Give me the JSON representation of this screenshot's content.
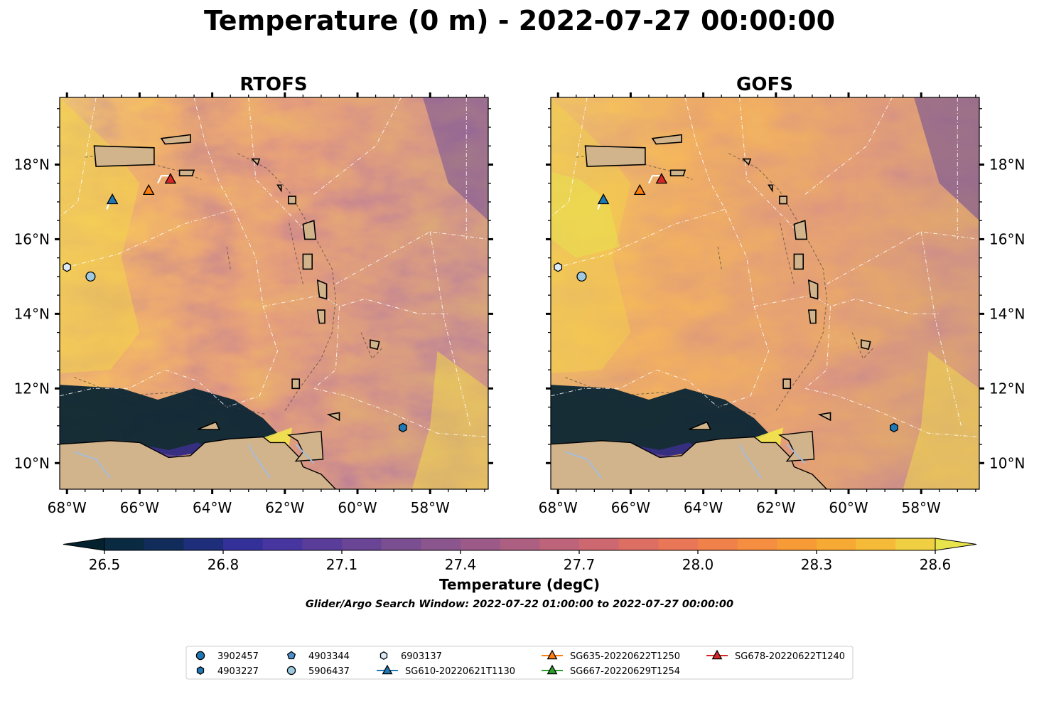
{
  "title": "Temperature (0 m) - 2022-07-27 00:00:00",
  "panels": [
    {
      "id": "rtofs",
      "title": "RTOFS"
    },
    {
      "id": "gofs",
      "title": "GOFS"
    }
  ],
  "map": {
    "lon_range": [
      -68.2,
      -56.4
    ],
    "lat_range": [
      9.3,
      19.8
    ],
    "lon_ticks": [
      -68,
      -66,
      -64,
      -62,
      -60,
      -58
    ],
    "lon_tick_labels": [
      "68°W",
      "66°W",
      "64°W",
      "62°W",
      "60°W",
      "58°W"
    ],
    "lat_ticks": [
      10,
      12,
      14,
      16,
      18
    ],
    "lat_tick_labels": [
      "10°N",
      "12°N",
      "14°N",
      "16°N",
      "18°N"
    ],
    "colors": {
      "land": "#d2b48c",
      "coast": "#000000",
      "rivers": "#a6bddb",
      "eez": "#ffffff"
    }
  },
  "colorbar": {
    "label": "Temperature (degC)",
    "vmin": 26.5,
    "vmax": 28.6,
    "ticks": [
      26.5,
      26.8,
      27.1,
      27.4,
      27.7,
      28.0,
      28.3,
      28.6
    ],
    "tick_labels": [
      "26.5",
      "26.8",
      "27.1",
      "27.4",
      "27.7",
      "28.0",
      "28.3",
      "28.6"
    ],
    "colors": [
      "#04212e",
      "#0a2a42",
      "#112b5a",
      "#1f2e7a",
      "#33309a",
      "#4836a0",
      "#5a3d9a",
      "#6a4596",
      "#7b4e92",
      "#8b558e",
      "#9c5a88",
      "#ad5f82",
      "#bd637a",
      "#cd6870",
      "#dc6e64",
      "#e87657",
      "#f0814b",
      "#f58e40",
      "#f79b37",
      "#f7aa33",
      "#f5bb38",
      "#f0cf42",
      "#e8e44e"
    ]
  },
  "subtitle": "Glider/Argo Search Window: 2022-07-22 01:00:00 to 2022-07-27 00:00:00",
  "legend": {
    "items": [
      {
        "label": "3902457",
        "marker": "circle",
        "color": "#1f77b4"
      },
      {
        "label": "4903227",
        "marker": "hexagon",
        "color": "#1f77b4"
      },
      {
        "label": "4903344",
        "marker": "pentagon",
        "color": "#4f8fc9"
      },
      {
        "label": "5906437",
        "marker": "circle",
        "color": "#9ecae1"
      },
      {
        "label": "6903137",
        "marker": "hexagon",
        "color": "#deebf7"
      },
      {
        "label": "SG610-20220621T1130",
        "marker": "triangle-line",
        "color": "#1f77b4"
      },
      {
        "label": "SG635-20220622T1250",
        "marker": "triangle-line",
        "color": "#ff7f0e"
      },
      {
        "label": "SG667-20220629T1254",
        "marker": "triangle-line",
        "color": "#2ca02c"
      },
      {
        "label": "SG678-20220622T1240",
        "marker": "triangle-line",
        "color": "#d62728"
      }
    ]
  },
  "observations": [
    {
      "name": "SG610-20220621T1130",
      "lon": -66.75,
      "lat": 17.05,
      "marker": "triangle",
      "color": "#1f77b4"
    },
    {
      "name": "SG635-20220622T1250",
      "lon": -65.75,
      "lat": 17.3,
      "marker": "triangle",
      "color": "#ff7f0e"
    },
    {
      "name": "SG678-20220622T1240",
      "lon": -65.15,
      "lat": 17.6,
      "marker": "triangle",
      "color": "#d62728"
    },
    {
      "name": "6903137",
      "lon": -68.0,
      "lat": 15.25,
      "marker": "hexagon",
      "color": "#deebf7"
    },
    {
      "name": "5906437",
      "lon": -67.35,
      "lat": 15.0,
      "marker": "circle",
      "color": "#9ecae1"
    },
    {
      "name": "4903227",
      "lon": -58.75,
      "lat": 10.95,
      "marker": "hexagon",
      "color": "#1f77b4"
    }
  ]
}
